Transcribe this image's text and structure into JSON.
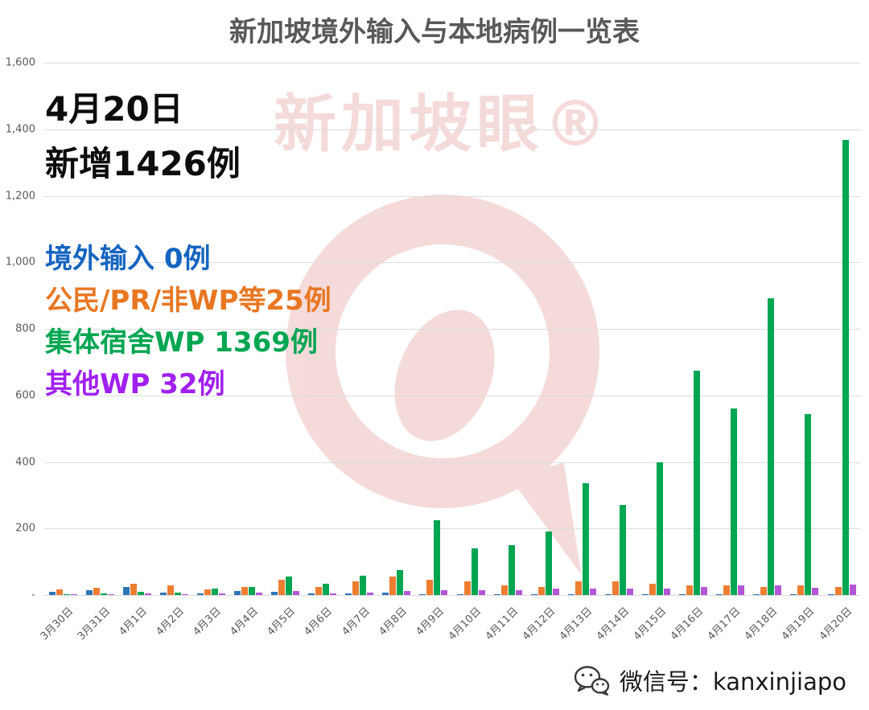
{
  "title": "新加坡境外输入与本地病例一览表",
  "annotations": {
    "date_label": "4月20日",
    "new_total": "新增1426例",
    "legend": [
      {
        "label": "境外输入 0例",
        "color": "#1565C0"
      },
      {
        "label": "公民/PR/非WP等25例",
        "color": "#E87722"
      },
      {
        "label": "集体宿舍WP 1369例",
        "color": "#00A651"
      },
      {
        "label": "其他WP 32例",
        "color": "#A020F0"
      }
    ]
  },
  "watermark": {
    "text": "新加坡眼®"
  },
  "footer": {
    "wechat_label": "微信号：kanxinjiapo"
  },
  "chart_data": {
    "type": "bar",
    "title": "新加坡境外输入与本地病例一览表",
    "categories": [
      "3月30日",
      "3月31日",
      "4月1日",
      "4月2日",
      "4月3日",
      "4月4日",
      "4月5日",
      "4月6日",
      "4月7日",
      "4月8日",
      "4月9日",
      "4月10日",
      "4月11日",
      "4月12日",
      "4月13日",
      "4月14日",
      "4月15日",
      "4月16日",
      "4月17日",
      "4月18日",
      "4月19日",
      "4月20日"
    ],
    "series": [
      {
        "name": "境外输入",
        "color": "#2E75B6",
        "values": [
          10,
          15,
          25,
          8,
          5,
          12,
          10,
          5,
          6,
          8,
          3,
          3,
          2,
          2,
          3,
          2,
          2,
          1,
          1,
          1,
          1,
          0
        ]
      },
      {
        "name": "公民/PR/非WP等",
        "color": "#ED7D31",
        "values": [
          18,
          22,
          35,
          28,
          18,
          25,
          45,
          25,
          40,
          55,
          45,
          42,
          30,
          25,
          40,
          40,
          35,
          30,
          30,
          25,
          30,
          25
        ]
      },
      {
        "name": "集体宿舍WP",
        "color": "#00A651",
        "values": [
          3,
          5,
          10,
          8,
          20,
          25,
          55,
          35,
          58,
          75,
          225,
          140,
          150,
          190,
          335,
          270,
          400,
          675,
          560,
          893,
          543,
          1369
        ]
      },
      {
        "name": "其他WP",
        "color": "#B356D6",
        "values": [
          2,
          3,
          5,
          3,
          5,
          8,
          12,
          5,
          8,
          12,
          15,
          15,
          15,
          20,
          20,
          20,
          20,
          25,
          28,
          30,
          22,
          32
        ]
      }
    ],
    "ylim": [
      0,
      1600
    ],
    "yticks": [
      {
        "label": "-",
        "value": 0
      },
      {
        "label": "200",
        "value": 200
      },
      {
        "label": "400",
        "value": 400
      },
      {
        "label": "600",
        "value": 600
      },
      {
        "label": "800",
        "value": 800
      },
      {
        "label": "1,000",
        "value": 1000
      },
      {
        "label": "1,200",
        "value": 1200
      },
      {
        "label": "1,400",
        "value": 1400
      },
      {
        "label": "1,600",
        "value": 1600
      }
    ],
    "grid": true,
    "legend_position": "in-plot-annotations"
  }
}
